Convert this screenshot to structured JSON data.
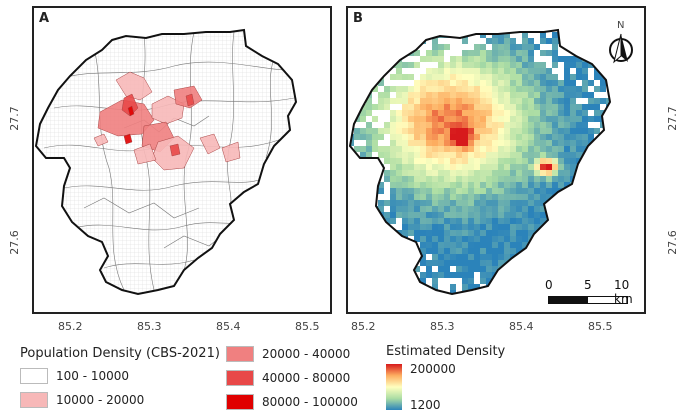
{
  "panels": {
    "a_label": "A",
    "b_label": "B"
  },
  "axes": {
    "x_ticks": [
      "85.2",
      "85.3",
      "85.4",
      "85.5"
    ],
    "y_ticks": [
      "27.7",
      "27.6"
    ]
  },
  "north_arrow": {
    "label": "N",
    "icon": "north-arrow-icon"
  },
  "scale_bar": {
    "labels": [
      "0",
      "5",
      "10 km"
    ]
  },
  "legend_population": {
    "title": "Population Density (CBS-2021)",
    "items": [
      {
        "label": "100 - 10000",
        "color": "#ffffff"
      },
      {
        "label": "10000 - 20000",
        "color": "#f7b8b8"
      },
      {
        "label": "20000 - 40000",
        "color": "#f08080"
      },
      {
        "label": "40000 - 80000",
        "color": "#e84848"
      },
      {
        "label": "80000 - 100000",
        "color": "#e00000"
      }
    ]
  },
  "legend_estimated": {
    "title": "Estimated Density",
    "max_label": "200000",
    "min_label": "1200",
    "colors": [
      "#d7191c",
      "#fdae61",
      "#ffffbf",
      "#abdda4",
      "#2b83ba"
    ]
  }
}
